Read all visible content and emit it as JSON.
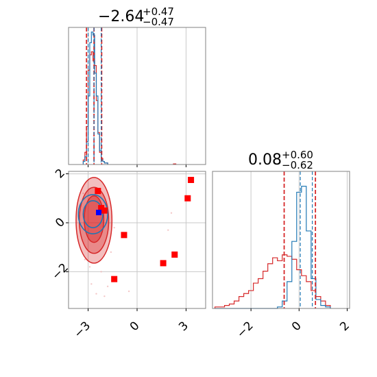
{
  "chart_data": {
    "type": "corner",
    "colors": {
      "series_a": "#1f77b4",
      "series_b": "#d62728",
      "markers_red": "#ff0000",
      "marker_blue": "#0000ff",
      "grid": "#c8c8c8"
    },
    "grid": true,
    "titles": {
      "param1": {
        "median": "−2.64",
        "upper": "+0.47",
        "lower": "−0.47"
      },
      "param2": {
        "median": "0.08",
        "upper": "+0.60",
        "lower": "−0.62"
      }
    },
    "x1_range": [
      -4.2,
      4.2
    ],
    "x2_range": [
      -3.6,
      2.1
    ],
    "y2_range": [
      -3.5,
      2.1
    ],
    "x1_ticks": [
      {
        "v": -3,
        "label": "−3"
      },
      {
        "v": 0,
        "label": "0"
      },
      {
        "v": 3,
        "label": "3"
      }
    ],
    "x2_ticks": [
      {
        "v": -2,
        "label": "−2"
      },
      {
        "v": 0,
        "label": "0"
      },
      {
        "v": 2,
        "label": "2"
      }
    ],
    "y2_ticks": [
      {
        "v": 2,
        "label": "2"
      },
      {
        "v": 0,
        "label": "0"
      },
      {
        "v": -2,
        "label": "−2"
      }
    ],
    "hist_param1": {
      "bins": [
        -3.3,
        -3.2,
        -3.1,
        -3.0,
        -2.9,
        -2.8,
        -2.7,
        -2.6,
        -2.5,
        -2.4,
        -2.3,
        -2.2,
        -2.1,
        -2.0,
        -1.9,
        -1.8
      ],
      "series_a": [
        0.02,
        0.05,
        0.15,
        0.45,
        0.8,
        0.87,
        0.85,
        0.6,
        0.45,
        0.2,
        0.09,
        0.03,
        0.02,
        0.01,
        0.01
      ],
      "series_b": [
        0.03,
        0.08,
        0.25,
        0.62,
        0.72,
        0.74,
        0.68,
        0.65,
        0.42,
        0.21,
        0.08,
        0.04,
        0.02,
        0.01,
        0.01
      ],
      "quantiles_a": [
        -3.0,
        -2.64,
        -2.2
      ],
      "quantiles_b": [
        -3.1,
        -2.64,
        -2.17
      ]
    },
    "hist_param2": {
      "bins": [
        -3.0,
        -2.8,
        -2.6,
        -2.4,
        -2.2,
        -2.0,
        -1.8,
        -1.6,
        -1.4,
        -1.2,
        -1.0,
        -0.8,
        -0.6,
        -0.4,
        -0.2,
        0.0,
        0.2,
        0.4,
        0.6,
        0.8,
        1.0,
        1.2,
        1.4,
        1.6,
        1.8
      ],
      "series_a": [
        0,
        0,
        0,
        0,
        0,
        0,
        0,
        0,
        0,
        0,
        0,
        0,
        0,
        0.01,
        0.05,
        0.18,
        0.45,
        0.78,
        0.82,
        0.52,
        0.2,
        0.06,
        0.02,
        0.01
      ],
      "series_b": [
        0.01,
        0.01,
        0.02,
        0.03,
        0.05,
        0.08,
        0.1,
        0.12,
        0.17,
        0.2,
        0.25,
        0.3,
        0.34,
        0.32,
        0.36,
        0.35,
        0.33,
        0.26,
        0.22,
        0.18,
        0.12,
        0.08,
        0.05,
        0.02
      ],
      "quantiles_a": [
        0.05,
        0.55
      ],
      "quantiles_b": [
        -0.62,
        0.68
      ]
    },
    "joint": {
      "contours_b": [
        {
          "cx": -2.64,
          "cy": 0.1,
          "rx": 1.1,
          "ry": 1.75,
          "opacity": 0.3
        },
        {
          "cx": -2.64,
          "cy": 0.1,
          "rx": 0.9,
          "ry": 1.35,
          "opacity": 0.35
        },
        {
          "cx": -2.64,
          "cy": 0.15,
          "rx": 0.6,
          "ry": 0.95,
          "opacity": 0.45
        }
      ],
      "contours_a": [
        {
          "cx": -2.7,
          "cy": 0.35,
          "rx": 0.9,
          "ry": 0.8
        },
        {
          "cx": -2.7,
          "cy": 0.35,
          "rx": 0.6,
          "ry": 0.55
        }
      ],
      "red_markers": [
        {
          "x": -2.4,
          "y": 1.3
        },
        {
          "x": -2.2,
          "y": 0.6
        },
        {
          "x": -2.0,
          "y": 0.5
        },
        {
          "x": -0.8,
          "y": -0.5
        },
        {
          "x": 1.6,
          "y": -1.65
        },
        {
          "x": 2.3,
          "y": -1.3
        },
        {
          "x": 3.1,
          "y": 1.0
        },
        {
          "x": 3.3,
          "y": 1.75
        },
        {
          "x": -1.4,
          "y": -2.3
        }
      ],
      "blue_marker": {
        "x": -2.35,
        "y": 0.42
      }
    }
  }
}
